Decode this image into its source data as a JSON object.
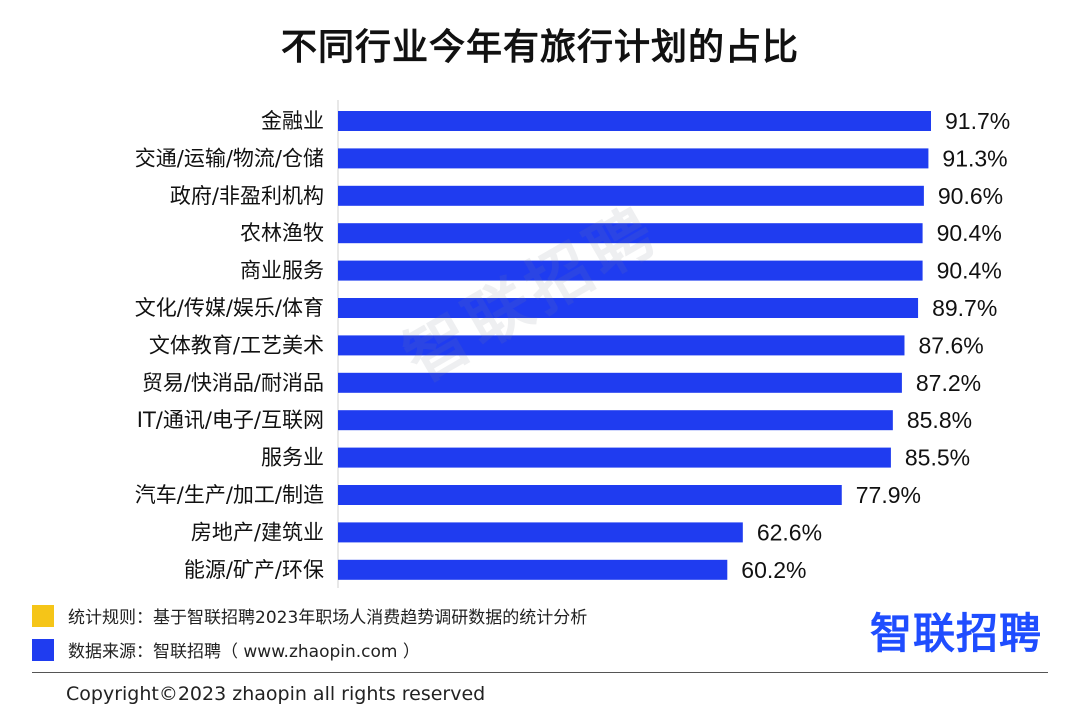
{
  "title": "不同行业今年有旅行计划的占比",
  "chart_data": {
    "type": "bar",
    "orientation": "horizontal",
    "categories": [
      "金融业",
      "交通/运输/物流/仓储",
      "政府/非盈利机构",
      "农林渔牧",
      "商业服务",
      "文化/传媒/娱乐/体育",
      "文体教育/工艺美术",
      "贸易/快消品/耐消品",
      "IT/通讯/电子/互联网",
      "服务业",
      "汽车/生产/加工/制造",
      "房地产/建筑业",
      "能源/矿产/环保"
    ],
    "values": [
      91.7,
      91.3,
      90.6,
      90.4,
      90.4,
      89.7,
      87.6,
      87.2,
      85.8,
      85.5,
      77.9,
      62.6,
      60.2
    ],
    "value_labels": [
      "91.7%",
      "91.3%",
      "90.6%",
      "90.4%",
      "90.4%",
      "89.7%",
      "87.6%",
      "87.2%",
      "85.8%",
      "85.5%",
      "77.9%",
      "62.6%",
      "60.2%"
    ],
    "bar_color": "#1f3cf0",
    "xlim": [
      0,
      100
    ],
    "grid": false
  },
  "watermark": "智联招聘",
  "notes": [
    {
      "label": "统计规则：基于智联招聘2023年职场人消费趋势调研数据的统计分析",
      "color": "#f5c518"
    },
    {
      "label": "数据来源：智联招聘（ www.zhaopin.com ）",
      "color": "#1f3cf0"
    }
  ],
  "brand_logo": "智联招聘",
  "copyright": "Copyright©2023 zhaopin all rights reserved"
}
